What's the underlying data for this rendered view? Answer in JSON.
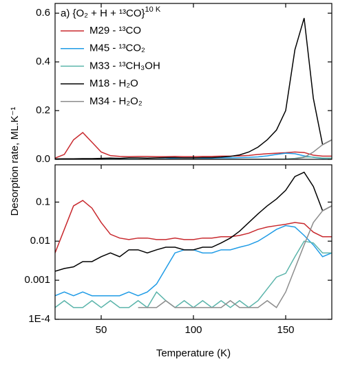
{
  "chart_data": [
    {
      "type": "line",
      "title": "a) {O₂ + H + ¹³CO}",
      "title_superscript": "10 K",
      "y_label": "Desorption rate, ML.K⁻¹",
      "x": [
        25,
        30,
        35,
        40,
        45,
        50,
        55,
        60,
        65,
        70,
        75,
        80,
        85,
        90,
        95,
        100,
        105,
        110,
        115,
        120,
        125,
        130,
        135,
        140,
        145,
        150,
        155,
        160,
        165,
        170,
        175
      ],
      "xlim": [
        25,
        175
      ],
      "xticks": [
        50,
        100,
        150
      ],
      "ylim": [
        0,
        0.64
      ],
      "yticks": [
        {
          "value": 0,
          "label": "0.0"
        },
        0.2,
        0.4,
        0.6
      ],
      "legend": "upper left",
      "series": [
        {
          "name": "M29 - ¹³CO",
          "color": "#c8282d",
          "values": [
            0.005,
            0.02,
            0.08,
            0.11,
            0.07,
            0.03,
            0.015,
            0.012,
            0.011,
            0.012,
            0.012,
            0.011,
            0.011,
            0.012,
            0.011,
            0.011,
            0.012,
            0.012,
            0.013,
            0.013,
            0.014,
            0.016,
            0.02,
            0.023,
            0.025,
            0.027,
            0.03,
            0.028,
            0.017,
            0.013,
            0.013
          ]
        },
        {
          "name": "M45 - ¹³CO₂",
          "color": "#1e9be6",
          "values": [
            0.0004,
            0.0005,
            0.0004,
            0.0005,
            0.0004,
            0.0004,
            0.0004,
            0.0004,
            0.0005,
            0.0004,
            0.0005,
            0.0008,
            0.002,
            0.005,
            0.006,
            0.006,
            0.005,
            0.005,
            0.006,
            0.006,
            0.007,
            0.008,
            0.01,
            0.014,
            0.02,
            0.025,
            0.023,
            0.014,
            0.008,
            0.004,
            0.005
          ]
        },
        {
          "name": "M33 - ¹³CH₃OH",
          "color": "#5ab4aa",
          "values": [
            0.0002,
            0.0003,
            0.0002,
            0.0002,
            0.0003,
            0.0002,
            0.0003,
            0.0002,
            0.0002,
            0.0003,
            0.0002,
            0.0005,
            0.0003,
            0.0002,
            0.0003,
            0.0002,
            0.0003,
            0.0002,
            0.0003,
            0.0002,
            0.0003,
            0.0002,
            0.0003,
            0.0006,
            0.0012,
            0.0015,
            0.004,
            0.01,
            0.009,
            0.005,
            0.005
          ]
        },
        {
          "name": "M18 - H₂O",
          "color": "#000000",
          "values": [
            0.0017,
            0.002,
            0.0022,
            0.003,
            0.003,
            0.004,
            0.005,
            0.004,
            0.006,
            0.006,
            0.005,
            0.006,
            0.007,
            0.007,
            0.006,
            0.006,
            0.007,
            0.007,
            0.009,
            0.012,
            0.018,
            0.03,
            0.05,
            0.08,
            0.12,
            0.2,
            0.45,
            0.58,
            0.25,
            0.06,
            0.08
          ]
        },
        {
          "name": "M34 - H₂O₂",
          "color": "#8c8c8c",
          "values": [
            null,
            null,
            null,
            null,
            null,
            null,
            null,
            null,
            null,
            0.0002,
            0.0002,
            0.0002,
            0.0003,
            0.0002,
            0.0002,
            0.0002,
            0.0002,
            0.0002,
            0.0002,
            0.0003,
            0.0002,
            0.0002,
            0.0002,
            0.0003,
            0.0002,
            0.0005,
            0.002,
            0.008,
            0.03,
            0.06,
            0.08
          ]
        }
      ]
    },
    {
      "type": "line",
      "x_label": "Temperature (K)",
      "log_y": true,
      "x": [
        25,
        30,
        35,
        40,
        45,
        50,
        55,
        60,
        65,
        70,
        75,
        80,
        85,
        90,
        95,
        100,
        105,
        110,
        115,
        120,
        125,
        130,
        135,
        140,
        145,
        150,
        155,
        160,
        165,
        170,
        175
      ],
      "xlim": [
        25,
        175
      ],
      "xticks": [
        50,
        100,
        150
      ],
      "ylim": [
        0.0001,
        0.9
      ],
      "yticks": [
        {
          "value": 0.0001,
          "label": "1E-4"
        },
        0.001,
        0.01,
        0.1
      ],
      "series": [
        {
          "color": "#c8282d",
          "values": [
            0.005,
            0.02,
            0.08,
            0.11,
            0.07,
            0.03,
            0.015,
            0.012,
            0.011,
            0.012,
            0.012,
            0.011,
            0.011,
            0.012,
            0.011,
            0.011,
            0.012,
            0.012,
            0.013,
            0.013,
            0.014,
            0.016,
            0.02,
            0.023,
            0.025,
            0.027,
            0.03,
            0.028,
            0.017,
            0.013,
            0.013
          ]
        },
        {
          "color": "#1e9be6",
          "values": [
            0.0004,
            0.0005,
            0.0004,
            0.0005,
            0.0004,
            0.0004,
            0.0004,
            0.0004,
            0.0005,
            0.0004,
            0.0005,
            0.0008,
            0.002,
            0.005,
            0.006,
            0.006,
            0.005,
            0.005,
            0.006,
            0.006,
            0.007,
            0.008,
            0.01,
            0.014,
            0.02,
            0.025,
            0.023,
            0.014,
            0.008,
            0.004,
            0.005
          ]
        },
        {
          "color": "#5ab4aa",
          "values": [
            0.0002,
            0.0003,
            0.0002,
            0.0002,
            0.0003,
            0.0002,
            0.0003,
            0.0002,
            0.0002,
            0.0003,
            0.0002,
            0.0005,
            0.0003,
            0.0002,
            0.0003,
            0.0002,
            0.0003,
            0.0002,
            0.0003,
            0.0002,
            0.0003,
            0.0002,
            0.0003,
            0.0006,
            0.0012,
            0.0015,
            0.004,
            0.01,
            0.009,
            0.005,
            0.005
          ]
        },
        {
          "color": "#000000",
          "values": [
            0.0017,
            0.002,
            0.0022,
            0.003,
            0.003,
            0.004,
            0.005,
            0.004,
            0.006,
            0.006,
            0.005,
            0.006,
            0.007,
            0.007,
            0.006,
            0.006,
            0.007,
            0.007,
            0.009,
            0.012,
            0.018,
            0.03,
            0.05,
            0.08,
            0.12,
            0.2,
            0.45,
            0.58,
            0.25,
            0.06,
            0.08
          ]
        },
        {
          "color": "#8c8c8c",
          "values": [
            null,
            null,
            null,
            null,
            null,
            null,
            null,
            null,
            null,
            0.0002,
            0.0002,
            0.0002,
            0.0003,
            0.0002,
            0.0002,
            0.0002,
            0.0002,
            0.0002,
            0.0002,
            0.0003,
            0.0002,
            0.0002,
            0.0002,
            0.0003,
            0.0002,
            0.0005,
            0.002,
            0.008,
            0.03,
            0.06,
            0.08
          ]
        }
      ]
    }
  ]
}
